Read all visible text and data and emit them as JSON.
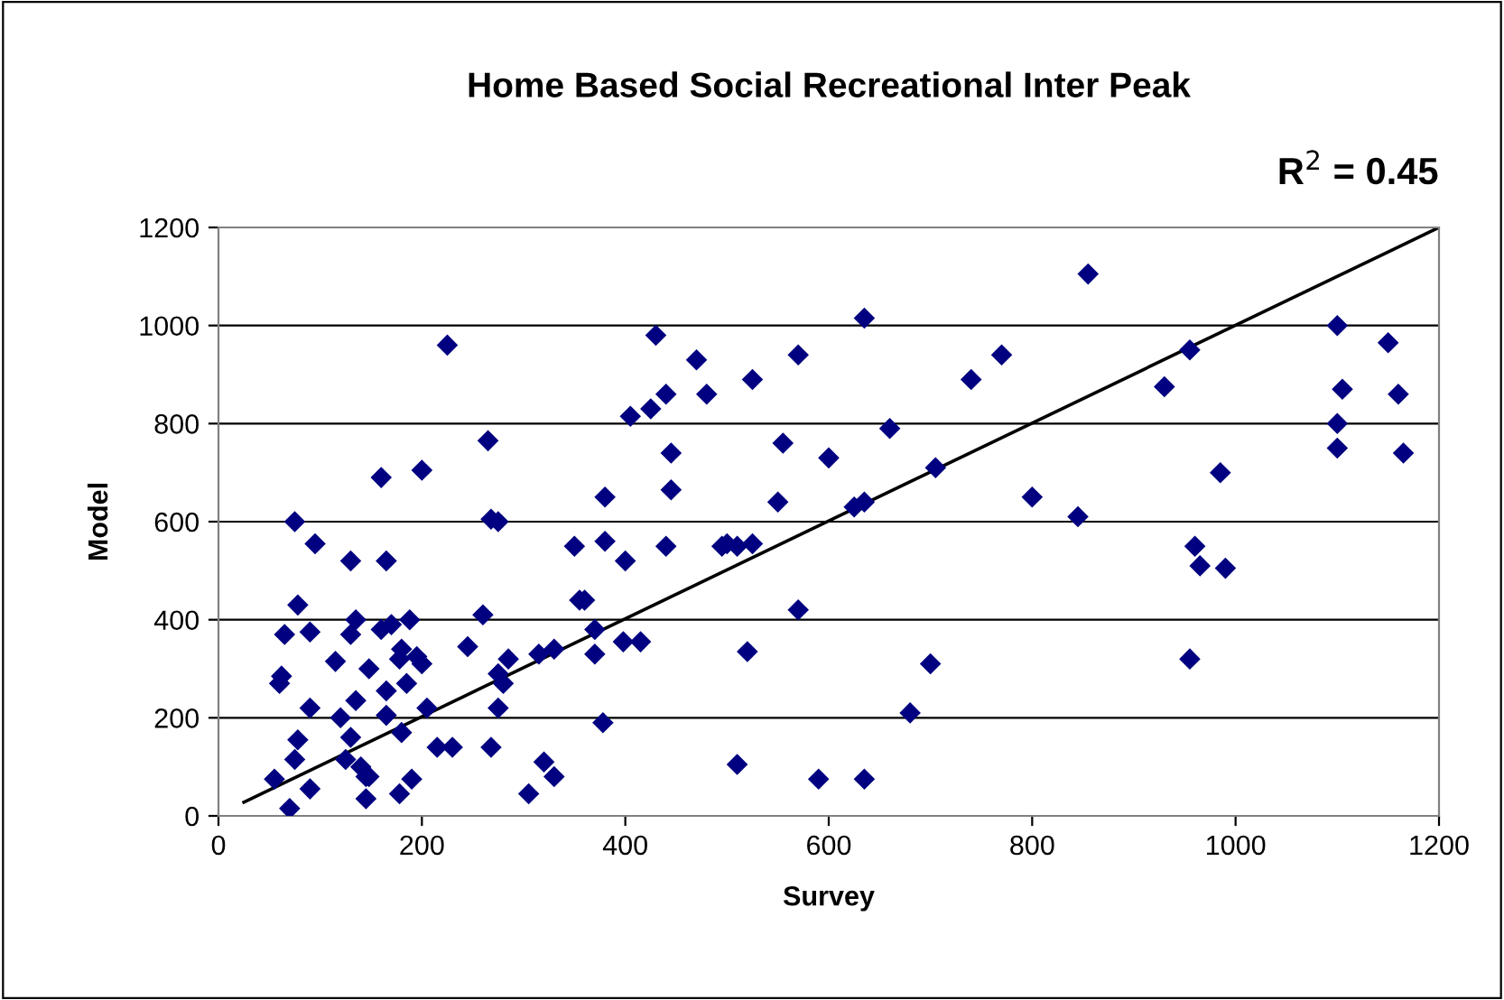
{
  "chart_data": {
    "type": "scatter",
    "title": "Home Based Social Recreational Inter Peak",
    "xlabel": "Survey",
    "ylabel": "Model",
    "annotations": [
      "R$^{2}$ = 0.45"
    ],
    "xlim": [
      0,
      1200
    ],
    "xticks": [
      0,
      200,
      400,
      600,
      800,
      1000,
      1200
    ],
    "ylim": [
      0,
      1200
    ],
    "yticks": [
      0,
      200,
      400,
      600,
      800,
      1000,
      1200
    ],
    "grid": "y",
    "legend": false,
    "marker": "diamond",
    "series": [
      {
        "color": "#000080",
        "x": [
          55,
          60,
          62,
          65,
          75,
          78,
          70,
          75,
          78,
          90,
          90,
          95,
          90,
          115,
          120,
          125,
          130,
          130,
          135,
          130,
          135,
          140,
          145,
          148,
          148,
          145,
          160,
          160,
          165,
          165,
          165,
          170,
          178,
          178,
          180,
          180,
          185,
          188,
          190,
          195,
          200,
          200,
          205,
          215,
          225,
          230,
          245,
          260,
          265,
          268,
          268,
          275,
          275,
          275,
          280,
          285,
          305,
          315,
          320,
          330,
          330,
          350,
          355,
          360,
          370,
          370,
          378,
          380,
          380,
          398,
          400,
          405,
          415,
          425,
          430,
          440,
          440,
          445,
          445,
          470,
          480,
          495,
          500,
          510,
          510,
          520,
          525,
          525,
          550,
          555,
          570,
          570,
          590,
          600,
          625,
          635,
          635,
          635,
          660,
          680,
          700,
          705,
          740,
          770,
          800,
          845,
          855,
          930,
          955,
          955,
          960,
          965,
          985,
          990,
          1100,
          1100,
          1100,
          1105,
          1150,
          1160,
          1165
        ],
        "values": [
          75,
          270,
          285,
          370,
          600,
          430,
          15,
          115,
          155,
          55,
          375,
          555,
          220,
          315,
          200,
          115,
          520,
          370,
          400,
          160,
          235,
          100,
          80,
          80,
          300,
          35,
          690,
          380,
          520,
          255,
          205,
          390,
          45,
          320,
          340,
          170,
          270,
          400,
          75,
          325,
          705,
          310,
          220,
          140,
          960,
          140,
          345,
          410,
          765,
          605,
          140,
          600,
          290,
          220,
          270,
          320,
          45,
          330,
          110,
          80,
          340,
          550,
          440,
          440,
          380,
          330,
          190,
          650,
          560,
          355,
          520,
          815,
          355,
          830,
          980,
          550,
          860,
          665,
          740,
          930,
          860,
          550,
          555,
          550,
          105,
          335,
          890,
          555,
          640,
          760,
          420,
          940,
          75,
          730,
          630,
          640,
          1015,
          75,
          790,
          210,
          310,
          710,
          890,
          940,
          650,
          610,
          1105,
          875,
          320,
          950,
          550,
          510,
          700,
          505,
          1000,
          750,
          800,
          870,
          965,
          860,
          740
        ]
      },
      {
        "type": "line",
        "color": "#000000",
        "marker": "none",
        "line_style": "solid",
        "x": [
          25,
          1200
        ],
        "values": [
          28,
          1200
        ]
      }
    ]
  }
}
